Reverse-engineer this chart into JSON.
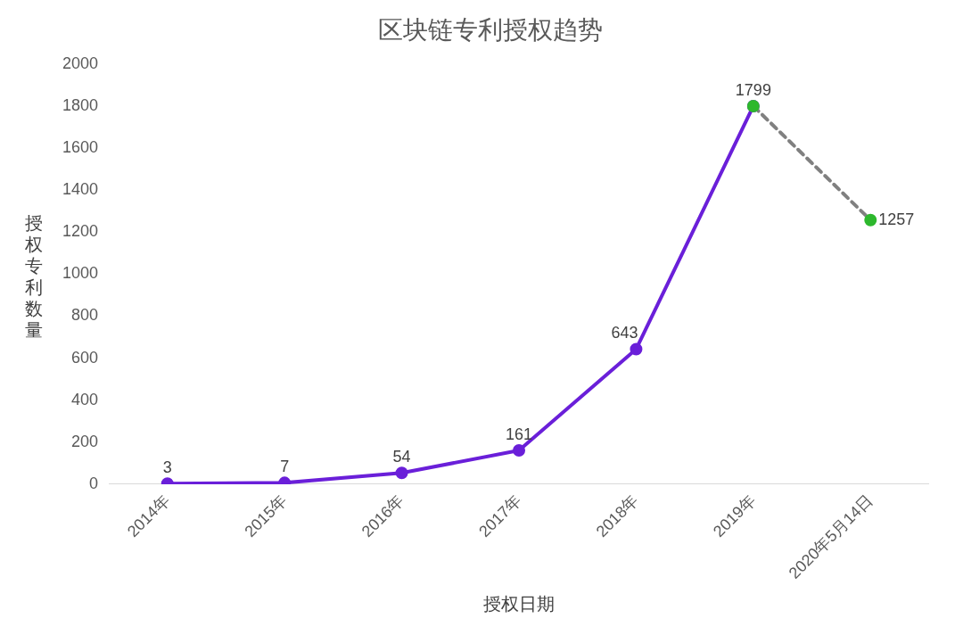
{
  "chart_data": {
    "type": "line",
    "title": "区块链专利授权趋势",
    "xlabel": "授权日期",
    "ylabel": "授权专利数量",
    "categories": [
      "2014年",
      "2015年",
      "2016年",
      "2017年",
      "2018年",
      "2019年",
      "2020年5月14日"
    ],
    "series": [
      {
        "color": "#6a1fd9",
        "values": [
          3,
          7,
          54,
          161,
          643,
          1799,
          null
        ],
        "value_labels": [
          "3",
          "7",
          "54",
          "161",
          "643",
          "1799",
          null
        ]
      },
      {
        "color": "#808080",
        "line_style": "dashed",
        "colors": [
          null,
          null,
          null,
          null,
          null,
          "#2db82d",
          "#2db82d"
        ],
        "values": [
          null,
          null,
          null,
          null,
          null,
          1799,
          1257
        ],
        "value_labels": [
          null,
          null,
          null,
          null,
          null,
          null,
          "1257"
        ]
      }
    ],
    "ylim": [
      0,
      2000
    ],
    "yticks": [
      0,
      200,
      400,
      600,
      800,
      1000,
      1200,
      1400,
      1600,
      1800,
      2000
    ],
    "marker": "circle",
    "grid": false,
    "legend": false
  }
}
